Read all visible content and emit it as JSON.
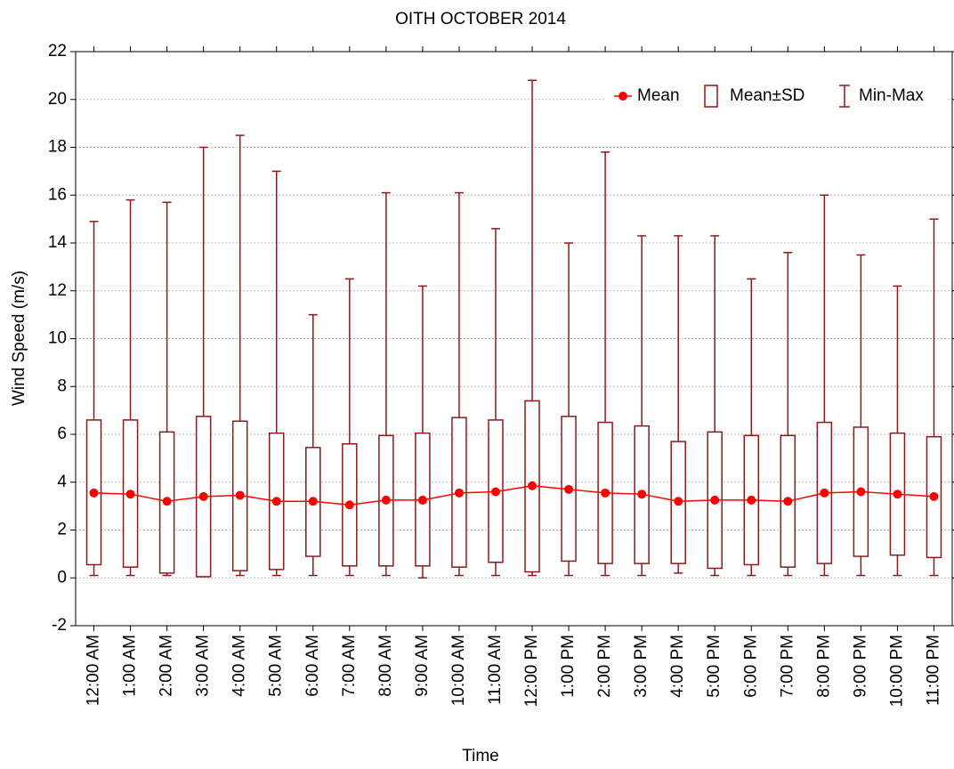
{
  "chart_data": {
    "type": "box",
    "title": "OITH OCTOBER 2014",
    "x_label": "Time",
    "y_label": "Wind Speed (m/s)",
    "categories": [
      "12:00 AM",
      "1:00 AM",
      "2:00 AM",
      "3:00 AM",
      "4:00 AM",
      "5:00 AM",
      "6:00 AM",
      "7:00 AM",
      "8:00 AM",
      "9:00 AM",
      "10:00 AM",
      "11:00 AM",
      "12:00 PM",
      "1:00 PM",
      "2:00 PM",
      "3:00 PM",
      "4:00 PM",
      "5:00 PM",
      "6:00 PM",
      "7:00 PM",
      "8:00 PM",
      "9:00 PM",
      "10:00 PM",
      "11:00 PM"
    ],
    "series": [
      {
        "name": "Mean",
        "color": "#ff0000",
        "values": [
          3.55,
          3.5,
          3.2,
          3.4,
          3.45,
          3.2,
          3.2,
          3.05,
          3.25,
          3.25,
          3.55,
          3.6,
          3.85,
          3.7,
          3.55,
          3.5,
          3.2,
          3.25,
          3.25,
          3.2,
          3.55,
          3.6,
          3.5,
          3.4
        ]
      },
      {
        "name": "Mean±SD",
        "color": "#8b1a1a",
        "low": [
          0.55,
          0.45,
          0.2,
          0.05,
          0.3,
          0.35,
          0.9,
          0.5,
          0.5,
          0.5,
          0.45,
          0.65,
          0.25,
          0.7,
          0.6,
          0.6,
          0.6,
          0.4,
          0.55,
          0.45,
          0.6,
          0.9,
          0.95,
          0.85
        ],
        "high": [
          6.6,
          6.6,
          6.1,
          6.75,
          6.55,
          6.05,
          5.45,
          5.6,
          5.95,
          6.05,
          6.7,
          6.6,
          7.4,
          6.75,
          6.5,
          6.35,
          5.7,
          6.1,
          5.95,
          5.95,
          6.5,
          6.3,
          6.05,
          5.9
        ]
      },
      {
        "name": "Min-Max",
        "color": "#8b1a1a",
        "low": [
          0.1,
          0.1,
          0.1,
          0.05,
          0.1,
          0.1,
          0.1,
          0.1,
          0.1,
          0.0,
          0.1,
          0.1,
          0.1,
          0.1,
          0.1,
          0.1,
          0.2,
          0.1,
          0.1,
          0.1,
          0.1,
          0.1,
          0.1,
          0.1
        ],
        "high": [
          14.9,
          15.8,
          15.7,
          18.0,
          18.5,
          17.0,
          11.0,
          12.5,
          16.1,
          12.2,
          16.1,
          14.6,
          20.8,
          14.0,
          17.8,
          14.3,
          14.3,
          14.3,
          12.5,
          13.6,
          16.0,
          13.5,
          12.2,
          15.0
        ]
      }
    ],
    "ylim": [
      -2,
      22
    ],
    "yticks": [
      -2,
      0,
      2,
      4,
      6,
      8,
      10,
      12,
      14,
      16,
      18,
      20,
      22
    ],
    "grid": true,
    "legend": "upper right"
  }
}
